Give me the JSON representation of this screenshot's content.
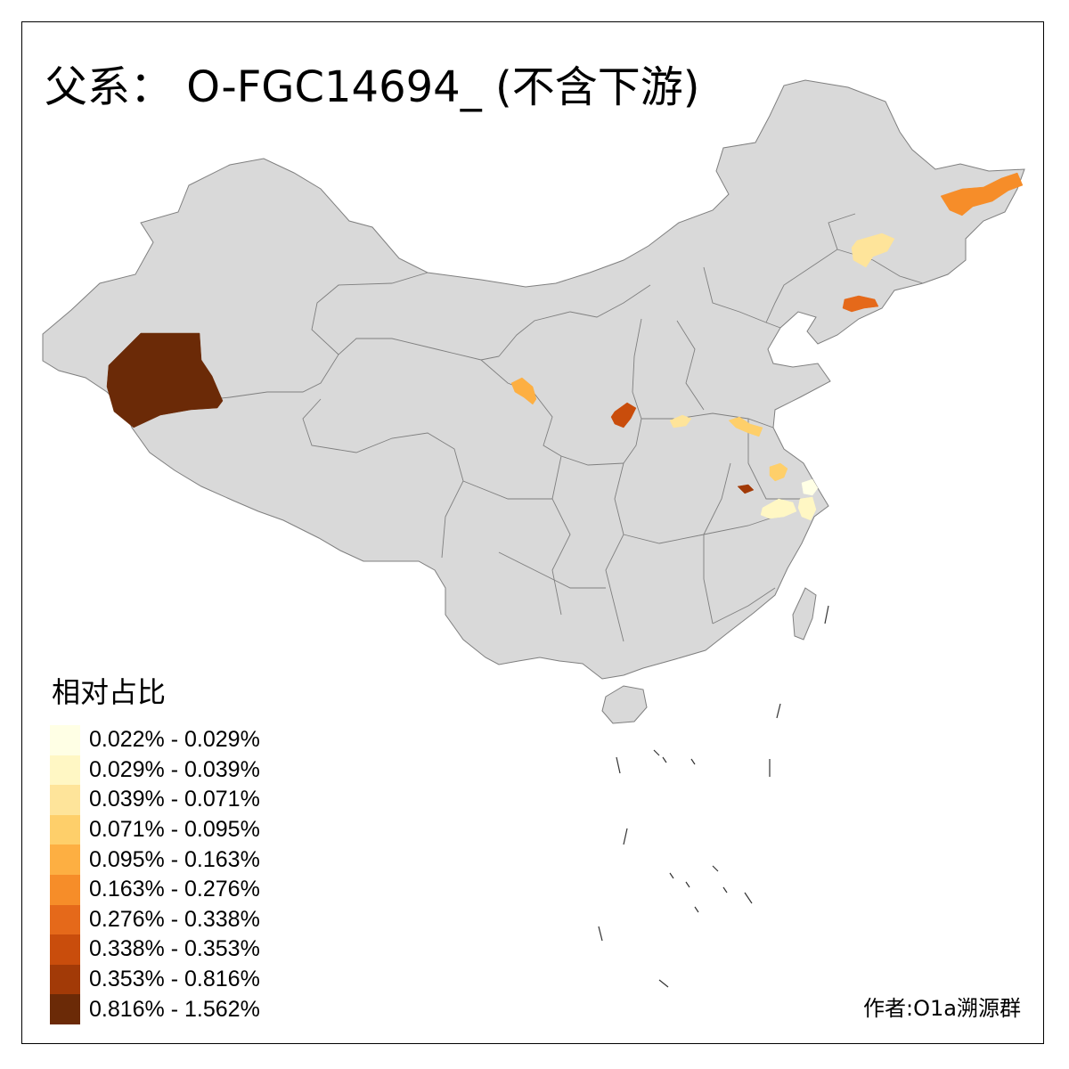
{
  "title": "父系： O-FGC14694_ (不含下游)",
  "legend": {
    "title": "相对占比",
    "classes": [
      {
        "label": "0.022% - 0.029%",
        "color": "#FFFFE5"
      },
      {
        "label": "0.029% - 0.039%",
        "color": "#FFF7C4"
      },
      {
        "label": "0.039% - 0.071%",
        "color": "#FEE49A"
      },
      {
        "label": "0.071% - 0.095%",
        "color": "#FECF6A"
      },
      {
        "label": "0.095% - 0.163%",
        "color": "#FDAF42"
      },
      {
        "label": "0.163% - 0.276%",
        "color": "#F68D29"
      },
      {
        "label": "0.276% - 0.338%",
        "color": "#E5691A"
      },
      {
        "label": "0.338% - 0.353%",
        "color": "#C94D0C"
      },
      {
        "label": "0.353% - 0.816%",
        "color": "#A23A07"
      },
      {
        "label": "0.816% - 1.562%",
        "color": "#6B2A07"
      }
    ]
  },
  "author": "作者:O1a溯源群",
  "colors": {
    "base_land": "#D9D9D9",
    "boundary": "#7F7F7F"
  },
  "highlighted_regions": [
    {
      "name": "xinjiang-southwest",
      "class": 9
    },
    {
      "name": "heilongjiang-east",
      "class": 5
    },
    {
      "name": "jilin-center",
      "class": 2
    },
    {
      "name": "liaoning-east",
      "class": 6
    },
    {
      "name": "gansu-east",
      "class": 4
    },
    {
      "name": "shaanxi-central",
      "class": 7
    },
    {
      "name": "henan-north",
      "class": 2
    },
    {
      "name": "shandong-southwest",
      "class": 3
    },
    {
      "name": "jiangsu-south",
      "class": 3
    },
    {
      "name": "jiangsu-east",
      "class": 0
    },
    {
      "name": "anhui-west",
      "class": 8
    },
    {
      "name": "anhui-south",
      "class": 1
    },
    {
      "name": "zhejiang-north",
      "class": 1
    }
  ]
}
